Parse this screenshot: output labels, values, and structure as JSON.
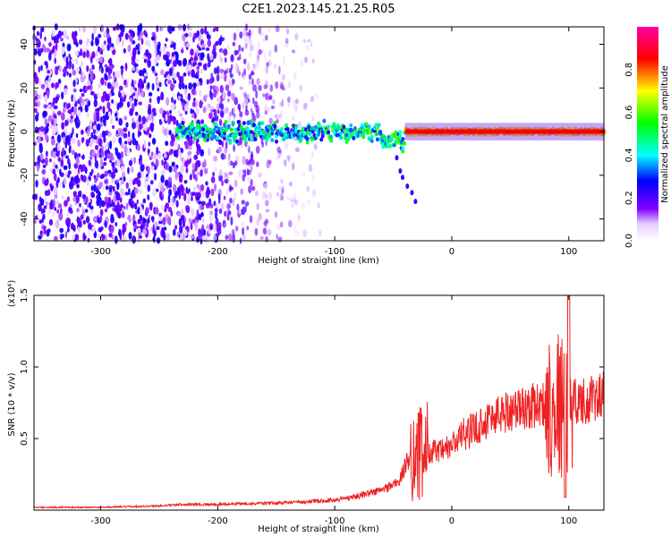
{
  "title": "C2E1.2023.145.21.25.R05",
  "chart_data": [
    {
      "type": "heatmap",
      "xlabel": "Height of straight line (km)",
      "ylabel": "Frequency (Hz)",
      "xlim": [
        -357,
        130
      ],
      "ylim": [
        -50,
        48
      ],
      "xticks": [
        -300,
        -200,
        -100,
        0,
        100
      ],
      "xtick_labels": [
        "-300",
        "-200",
        "-100",
        "0",
        "100"
      ],
      "yticks": [
        -40,
        -20,
        0,
        20,
        40
      ],
      "ytick_labels": [
        "-40",
        "-20",
        "0",
        "20",
        "40"
      ],
      "colorbar": {
        "label": "Normalized spectral amplitude",
        "range": [
          0,
          1
        ],
        "ticks": [
          0.0,
          0.2,
          0.4,
          0.6,
          0.8
        ],
        "tick_labels": [
          "0.0",
          "0.2",
          "0.4",
          "0.6",
          "0.8"
        ],
        "colormap": [
          "#ffffff",
          "#8000ff",
          "#0000ff",
          "#00ffff",
          "#00ff00",
          "#ffff00",
          "#ff0000",
          "#ff00a0"
        ]
      },
      "features": {
        "noise_band_x": [
          -357,
          -110
        ],
        "noise_freq_range": [
          -50,
          48
        ],
        "signal_center_freq": 0,
        "signal_band_x": [
          -235,
          130
        ],
        "strong_band_x": [
          -40,
          130
        ],
        "strong_band_amplitude": 0.85,
        "branch_points": [
          [
            -47,
            -12
          ],
          [
            -44,
            -18
          ],
          [
            -42,
            -21
          ],
          [
            -38,
            -25
          ],
          [
            -34,
            -28
          ],
          [
            -31,
            -32
          ]
        ]
      },
      "grid": false
    },
    {
      "type": "line",
      "xlabel": "Height of straight line (km)",
      "ylabel": "SNR (10 * v/v)",
      "yscale_label": "(x10⁴)",
      "xlim": [
        -357,
        130
      ],
      "ylim": [
        0,
        1.5
      ],
      "xticks": [
        -300,
        -200,
        -100,
        0,
        100
      ],
      "xtick_labels": [
        "-300",
        "-200",
        "-100",
        "0",
        "100"
      ],
      "yticks": [
        0.5,
        1.0,
        1.5
      ],
      "ytick_labels": [
        "0.5",
        "1.0",
        "1.5"
      ],
      "series": [
        {
          "color": "#ee2222",
          "x": [
            -357,
            -300,
            -250,
            -230,
            -200,
            -150,
            -120,
            -100,
            -80,
            -60,
            -45,
            -35,
            -28,
            -20,
            -10,
            0,
            10,
            20,
            30,
            40,
            50,
            60,
            70,
            80,
            90,
            95,
            100,
            103,
            110,
            120,
            130
          ],
          "y": [
            0.02,
            0.02,
            0.03,
            0.04,
            0.04,
            0.05,
            0.06,
            0.07,
            0.1,
            0.14,
            0.2,
            0.4,
            0.38,
            0.42,
            0.4,
            0.45,
            0.53,
            0.57,
            0.63,
            0.67,
            0.7,
            0.71,
            0.73,
            0.74,
            0.76,
            0.73,
            0.6,
            0.78,
            0.76,
            0.77,
            0.8
          ]
        }
      ],
      "grid": false
    }
  ]
}
